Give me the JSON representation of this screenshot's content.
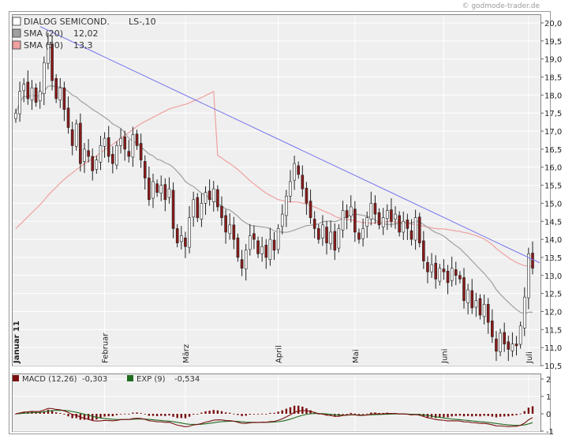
{
  "credit": "© godmode-trader.de",
  "chart_data": [
    {
      "type": "candlestick",
      "title": "DIALOG SEMICOND.",
      "title_suffix": "LS-,10",
      "legend": [
        {
          "name": "DIALOG SEMICOND.",
          "value": "LS-,10",
          "color": "#ffffff"
        },
        {
          "name": "SMA (20)",
          "value": "12,02",
          "color": "#a0a0a0"
        },
        {
          "name": "SMA (50)",
          "value": "13,3",
          "color": "#f0a0a0"
        }
      ],
      "ylim": [
        10.5,
        20.0
      ],
      "yticks": [
        "10,5",
        "11,0",
        "11,5",
        "12,0",
        "12,5",
        "13,0",
        "13,5",
        "14,0",
        "14,5",
        "15,0",
        "15,5",
        "16,0",
        "16,5",
        "17,0",
        "17,5",
        "18,0",
        "18,5",
        "19,0",
        "19,5",
        "20,0"
      ],
      "x_months": [
        {
          "label": "Januar 11",
          "index": 0,
          "bold": true
        },
        {
          "label": "Februar",
          "index": 22
        },
        {
          "label": "März",
          "index": 42
        },
        {
          "label": "April",
          "index": 65
        },
        {
          "label": "Mai",
          "index": 84
        },
        {
          "label": "Juni",
          "index": 106
        },
        {
          "label": "Juli",
          "index": 127
        }
      ],
      "grid": true,
      "legend_position": "top-left",
      "colors": {
        "up": "#ffffff",
        "down": "#8b1a1a",
        "trendline": "#7070ee",
        "sma20": "#a0a0a0",
        "sma50": "#f0a0a0"
      },
      "closes": [
        17.5,
        18.1,
        18.3,
        17.9,
        18.2,
        17.8,
        18.1,
        18.9,
        19.4,
        18.4,
        17.9,
        18.2,
        17.6,
        17.1,
        16.6,
        17.2,
        16.1,
        16.5,
        16.3,
        15.9,
        16.2,
        16.6,
        16.8,
        16.3,
        16.1,
        16.6,
        16.8,
        16.5,
        16.3,
        16.9,
        16.6,
        16.2,
        15.7,
        15.1,
        15.6,
        15.3,
        15.5,
        15.1,
        15.4,
        14.3,
        13.9,
        14.1,
        13.8,
        14.6,
        15.1,
        14.6,
        15.0,
        15.3,
        15.1,
        15.4,
        14.9,
        14.6,
        14.2,
        14.4,
        14.0,
        13.5,
        13.2,
        13.7,
        14.1,
        14.0,
        13.6,
        13.8,
        13.5,
        14.0,
        13.7,
        14.3,
        14.7,
        15.2,
        15.6,
        16.1,
        15.8,
        15.4,
        15.0,
        14.6,
        14.3,
        14.0,
        14.4,
        13.9,
        14.2,
        13.7,
        14.3,
        14.8,
        14.6,
        14.9,
        14.2,
        14.0,
        14.3,
        14.6,
        15.0,
        14.7,
        14.4,
        14.6,
        14.8,
        14.5,
        14.7,
        14.2,
        14.5,
        14.3,
        14.0,
        14.6,
        13.9,
        13.4,
        13.1,
        13.3,
        12.9,
        13.2,
        13.1,
        12.8,
        13.2,
        13.0,
        12.9,
        12.3,
        12.6,
        12.1,
        12.3,
        11.9,
        12.2,
        11.7,
        11.3,
        10.9,
        11.4,
        11.1,
        10.95,
        11.1,
        11.05,
        11.6,
        12.4,
        13.6,
        13.2
      ]
    },
    {
      "type": "line",
      "title": "MACD",
      "legend": [
        {
          "name": "MACD (12,26)",
          "value": "-0,303",
          "color": "#7a1010"
        },
        {
          "name": "EXP (9)",
          "value": "-0,534",
          "color": "#1f6b1f"
        }
      ],
      "ylim": [
        -1.0,
        2.0
      ],
      "yticks": [
        "2",
        "1",
        "0",
        "-1"
      ],
      "note": "histogram, MACD line and EXP(9) signal line over the same date range"
    }
  ]
}
